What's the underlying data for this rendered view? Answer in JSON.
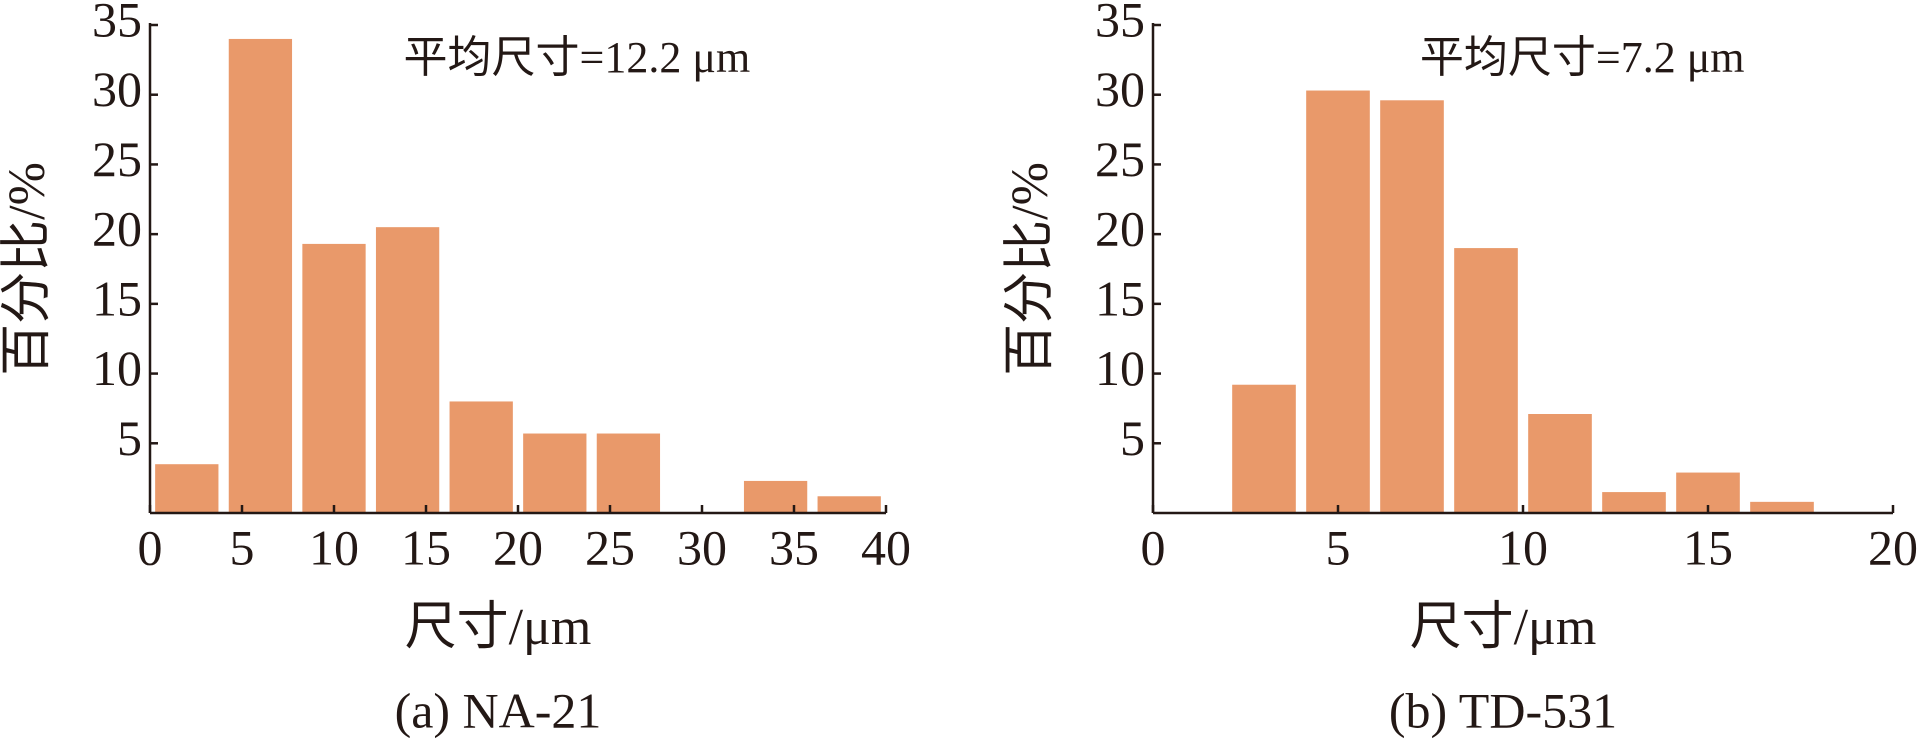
{
  "chart_data": [
    {
      "type": "histogram",
      "annotation": "平均尺寸=12.2 μm",
      "xlabel": "尺寸/μm",
      "ylabel": "百分比/%",
      "caption": "(a) NA-21",
      "bins": [
        0,
        4,
        8,
        12,
        16,
        20,
        24,
        28,
        32,
        36,
        40
      ],
      "values": [
        3.5,
        34,
        19.3,
        20.5,
        8,
        5.7,
        5.7,
        0,
        2.3,
        1.2
      ],
      "color": "#e9996a",
      "xlim": [
        0,
        40
      ],
      "xticks": [
        0,
        5,
        10,
        15,
        20,
        25,
        30,
        35,
        40
      ],
      "ylim": [
        0,
        35
      ],
      "yticks": [
        5,
        10,
        15,
        20,
        25,
        30,
        35
      ]
    },
    {
      "type": "histogram",
      "annotation": "平均尺寸=7.2 μm",
      "xlabel": "尺寸/μm",
      "ylabel": "百分比/%",
      "caption": "(b) TD-531",
      "bins": [
        2,
        4,
        6,
        8,
        10,
        12,
        14,
        16,
        18
      ],
      "values": [
        9.2,
        30.3,
        29.6,
        19,
        7.1,
        1.5,
        2.9,
        0.8
      ],
      "color": "#e9996a",
      "xlim": [
        0,
        20
      ],
      "xticks": [
        0,
        5,
        10,
        15,
        20
      ],
      "ylim": [
        0,
        35
      ],
      "yticks": [
        5,
        10,
        15,
        20,
        25,
        30,
        35
      ]
    }
  ]
}
